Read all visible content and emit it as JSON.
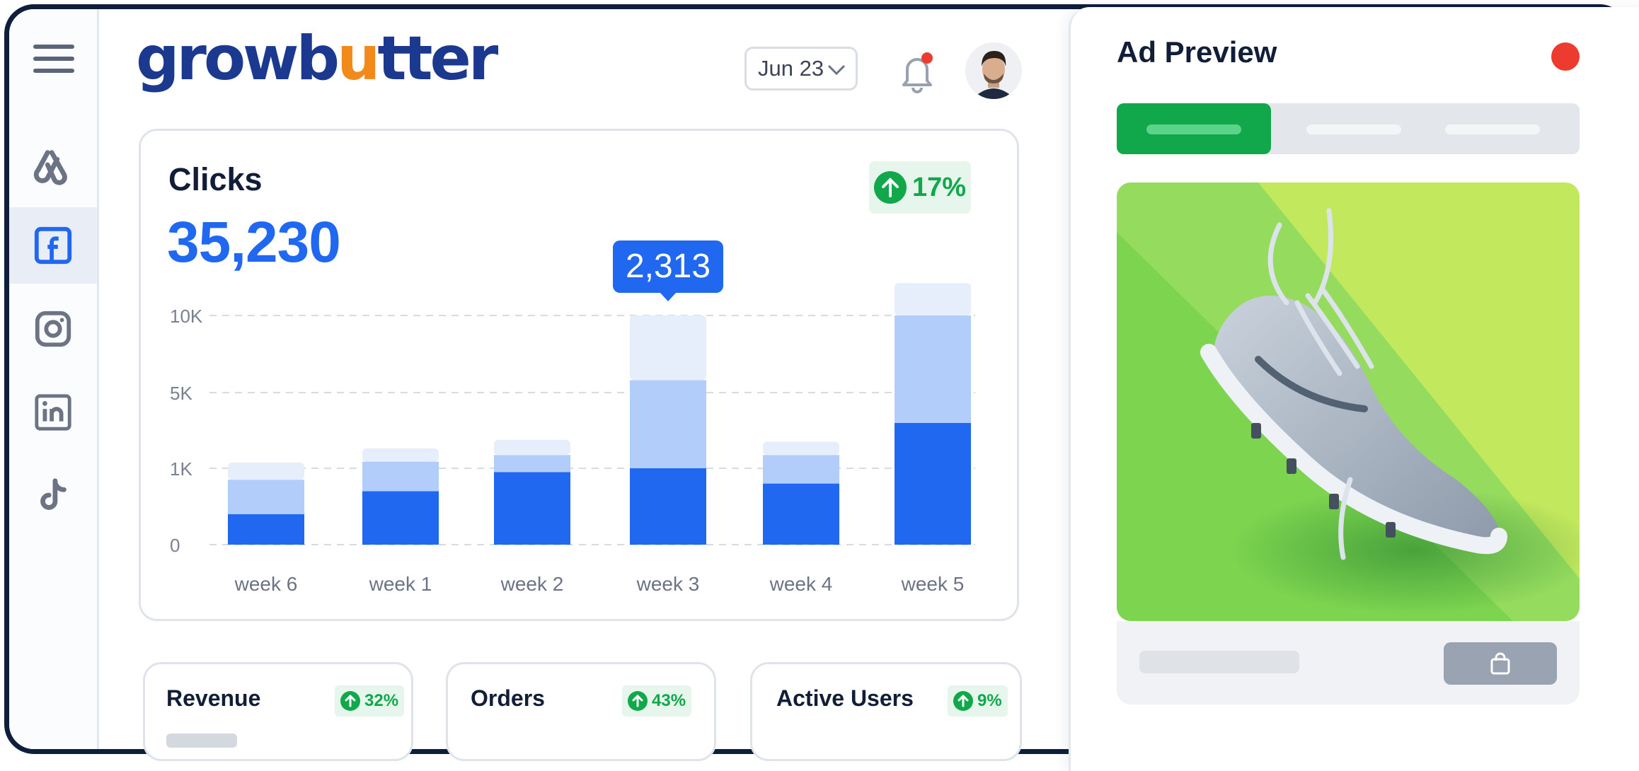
{
  "brand": {
    "logo_pre": "growb",
    "logo_u": "u",
    "logo_post": "tter",
    "primary": "#1b3a8f",
    "accent": "#f28a1a"
  },
  "header": {
    "date_select": "Jun 23",
    "date_icon": "chevron-down-icon",
    "notification_icon": "bell-icon",
    "notification_dot": true,
    "avatar_icon": "user-avatar"
  },
  "sidebar": {
    "menu_icon": "hamburger-menu-icon",
    "items": [
      {
        "icon": "google-ads-icon",
        "active": false
      },
      {
        "icon": "facebook-icon",
        "active": true
      },
      {
        "icon": "instagram-icon",
        "active": false
      },
      {
        "icon": "linkedin-icon",
        "active": false
      },
      {
        "icon": "tiktok-icon",
        "active": false
      }
    ]
  },
  "clicks_card": {
    "title": "Clicks",
    "total": "35,230",
    "change": "17%",
    "change_icon": "arrow-up-icon"
  },
  "chart_data": {
    "type": "bar",
    "stacked": true,
    "categories": [
      "week 6",
      "week 1",
      "week 2",
      "week 3",
      "week 4",
      "week 5"
    ],
    "y_ticks": [
      "0",
      "1K",
      "5K",
      "10K"
    ],
    "series": [
      {
        "color": "#2168f0",
        "values": [
          0.4,
          0.7,
          0.95,
          1.0,
          0.8,
          3.4
        ]
      },
      {
        "color": "#b3cdfa",
        "values": [
          0.45,
          0.65,
          0.75,
          4.8,
          0.9,
          6.6
        ]
      },
      {
        "color": "#e6eefb",
        "values": [
          0.45,
          0.7,
          0.8,
          4.2,
          0.7,
          2.1
        ]
      }
    ],
    "highlight": {
      "category": "week 3",
      "label": "2,313"
    },
    "grid": true
  },
  "stats": [
    {
      "label": "Revenue",
      "change": "32%"
    },
    {
      "label": "Orders",
      "change": "43%"
    },
    {
      "label": "Active Users",
      "change": "9%"
    }
  ],
  "ad_preview": {
    "title": "Ad Preview",
    "close_icon": "close-dot-icon",
    "tabs_count": 3,
    "image": "sneaker-product-image",
    "cart_icon": "shopping-bag-icon",
    "accent": "#10a84a"
  }
}
